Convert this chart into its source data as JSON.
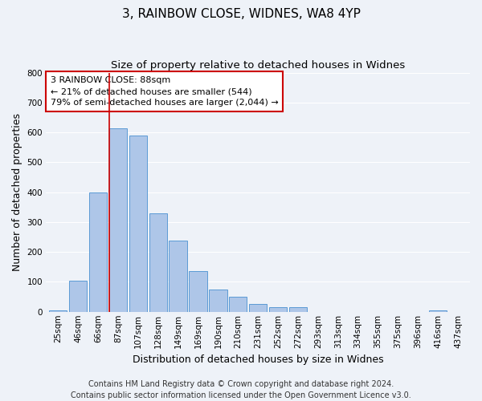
{
  "title": "3, RAINBOW CLOSE, WIDNES, WA8 4YP",
  "subtitle": "Size of property relative to detached houses in Widnes",
  "xlabel": "Distribution of detached houses by size in Widnes",
  "ylabel": "Number of detached properties",
  "bin_labels": [
    "25sqm",
    "46sqm",
    "66sqm",
    "87sqm",
    "107sqm",
    "128sqm",
    "149sqm",
    "169sqm",
    "190sqm",
    "210sqm",
    "231sqm",
    "252sqm",
    "272sqm",
    "293sqm",
    "313sqm",
    "334sqm",
    "355sqm",
    "375sqm",
    "396sqm",
    "416sqm",
    "437sqm"
  ],
  "bar_heights": [
    5,
    105,
    400,
    615,
    590,
    330,
    237,
    135,
    75,
    50,
    25,
    15,
    15,
    0,
    0,
    0,
    0,
    0,
    0,
    5,
    0
  ],
  "bar_color": "#aec6e8",
  "bar_edge_color": "#5b9bd5",
  "annotation_line1": "3 RAINBOW CLOSE: 88sqm",
  "annotation_line2": "← 21% of detached houses are smaller (544)",
  "annotation_line3": "79% of semi-detached houses are larger (2,044) →",
  "annotation_box_color": "#ffffff",
  "annotation_box_edge": "#cc0000",
  "red_line_color": "#cc0000",
  "ylim": [
    0,
    800
  ],
  "yticks": [
    0,
    100,
    200,
    300,
    400,
    500,
    600,
    700,
    800
  ],
  "footer_line1": "Contains HM Land Registry data © Crown copyright and database right 2024.",
  "footer_line2": "Contains public sector information licensed under the Open Government Licence v3.0.",
  "bg_color": "#eef2f8",
  "grid_color": "#ffffff",
  "title_fontsize": 11,
  "subtitle_fontsize": 9.5,
  "axis_label_fontsize": 9,
  "tick_fontsize": 7.5,
  "footer_fontsize": 7,
  "annot_fontsize": 8
}
